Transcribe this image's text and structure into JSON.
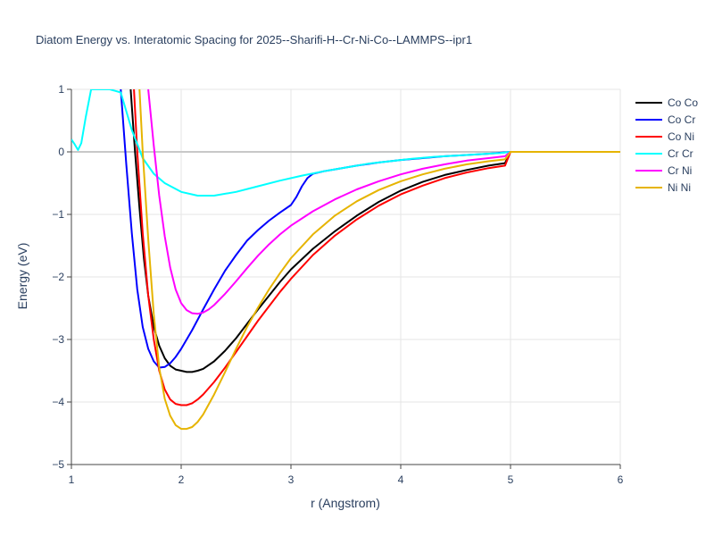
{
  "chart_data": {
    "type": "line",
    "title": "Diatom Energy vs. Interatomic Spacing for 2025--Sharifi-H--Cr-Ni-Co--LAMMPS--ipr1",
    "xlabel": "r (Angstrom)",
    "ylabel": "Energy (eV)",
    "xlim": [
      1,
      6
    ],
    "ylim": [
      -5,
      1
    ],
    "xticks": [
      1,
      2,
      3,
      4,
      5,
      6
    ],
    "xtick_labels": [
      "1",
      "2",
      "3",
      "4",
      "5",
      "6"
    ],
    "yticks": [
      1,
      0,
      -1,
      -2,
      -3,
      -4,
      -5
    ],
    "ytick_labels": [
      "1",
      "0",
      "−1",
      "−2",
      "−3",
      "−4",
      "−5"
    ],
    "grid": true,
    "legend_position": "top-right outside",
    "series": [
      {
        "name": "Co Co",
        "color": "#000000",
        "x": [
          1.54,
          1.58,
          1.62,
          1.66,
          1.7,
          1.75,
          1.8,
          1.85,
          1.9,
          1.95,
          2.0,
          2.05,
          2.1,
          2.15,
          2.2,
          2.3,
          2.4,
          2.5,
          2.6,
          2.7,
          2.8,
          2.9,
          3.0,
          3.2,
          3.4,
          3.6,
          3.8,
          4.0,
          4.2,
          4.4,
          4.6,
          4.8,
          4.95,
          5.0,
          5.5,
          6.0
        ],
        "y": [
          1.0,
          0.0,
          -0.9,
          -1.7,
          -2.3,
          -2.8,
          -3.1,
          -3.3,
          -3.42,
          -3.48,
          -3.5,
          -3.52,
          -3.52,
          -3.5,
          -3.47,
          -3.35,
          -3.18,
          -2.98,
          -2.75,
          -2.52,
          -2.3,
          -2.08,
          -1.88,
          -1.55,
          -1.27,
          -1.02,
          -0.8,
          -0.62,
          -0.48,
          -0.37,
          -0.29,
          -0.22,
          -0.18,
          0.0,
          0.0,
          0.0
        ]
      },
      {
        "name": "Co Cr",
        "color": "#0000ff",
        "x": [
          1.45,
          1.5,
          1.55,
          1.6,
          1.65,
          1.7,
          1.75,
          1.8,
          1.85,
          1.9,
          1.95,
          2.0,
          2.1,
          2.2,
          2.3,
          2.4,
          2.5,
          2.6,
          2.7,
          2.8,
          2.9,
          3.0,
          3.05,
          3.1,
          3.15,
          3.2,
          3.3,
          3.4,
          3.6,
          3.8,
          4.0,
          4.2,
          4.4,
          4.6,
          4.8,
          5.0,
          5.5,
          6.0
        ],
        "y": [
          1.0,
          -0.2,
          -1.3,
          -2.2,
          -2.8,
          -3.15,
          -3.35,
          -3.45,
          -3.44,
          -3.38,
          -3.28,
          -3.15,
          -2.85,
          -2.52,
          -2.2,
          -1.9,
          -1.65,
          -1.42,
          -1.25,
          -1.1,
          -0.97,
          -0.85,
          -0.72,
          -0.55,
          -0.42,
          -0.35,
          -0.31,
          -0.28,
          -0.22,
          -0.17,
          -0.13,
          -0.1,
          -0.07,
          -0.05,
          -0.03,
          0.0,
          0.0,
          0.0
        ]
      },
      {
        "name": "Co Ni",
        "color": "#ff0000",
        "x": [
          1.57,
          1.6,
          1.65,
          1.7,
          1.75,
          1.8,
          1.85,
          1.9,
          1.95,
          2.0,
          2.05,
          2.1,
          2.15,
          2.2,
          2.3,
          2.4,
          2.5,
          2.6,
          2.7,
          2.8,
          2.9,
          3.0,
          3.2,
          3.4,
          3.6,
          3.8,
          4.0,
          4.2,
          4.4,
          4.6,
          4.8,
          4.95,
          5.0,
          5.5,
          6.0
        ],
        "y": [
          1.0,
          0.0,
          -1.3,
          -2.3,
          -3.0,
          -3.5,
          -3.8,
          -3.96,
          -4.03,
          -4.05,
          -4.05,
          -4.02,
          -3.96,
          -3.88,
          -3.68,
          -3.45,
          -3.2,
          -2.95,
          -2.7,
          -2.47,
          -2.24,
          -2.03,
          -1.65,
          -1.34,
          -1.08,
          -0.86,
          -0.68,
          -0.54,
          -0.42,
          -0.33,
          -0.26,
          -0.22,
          0.0,
          0.0,
          0.0
        ]
      },
      {
        "name": "Cr Cr",
        "color": "#00ffff",
        "x": [
          1.0,
          1.03,
          1.06,
          1.09,
          1.13,
          1.18,
          1.25,
          1.35,
          1.45,
          1.55,
          1.65,
          1.75,
          1.85,
          2.0,
          2.15,
          2.3,
          2.5,
          2.7,
          2.9,
          3.1,
          3.3,
          3.5,
          3.7,
          3.9,
          4.1,
          4.3,
          4.5,
          4.7,
          4.9,
          5.0,
          5.5,
          6.0
        ],
        "y": [
          0.2,
          0.12,
          0.03,
          0.14,
          0.55,
          1.0,
          1.0,
          1.0,
          0.95,
          0.35,
          -0.1,
          -0.35,
          -0.5,
          -0.64,
          -0.7,
          -0.7,
          -0.64,
          -0.55,
          -0.46,
          -0.38,
          -0.31,
          -0.25,
          -0.19,
          -0.15,
          -0.11,
          -0.08,
          -0.06,
          -0.04,
          -0.02,
          0.0,
          0.0,
          0.0
        ]
      },
      {
        "name": "Cr Ni",
        "color": "#ff00ff",
        "x": [
          1.7,
          1.75,
          1.8,
          1.85,
          1.9,
          1.95,
          2.0,
          2.05,
          2.1,
          2.15,
          2.2,
          2.25,
          2.3,
          2.4,
          2.5,
          2.6,
          2.7,
          2.8,
          2.9,
          3.0,
          3.2,
          3.4,
          3.6,
          3.8,
          4.0,
          4.2,
          4.4,
          4.6,
          4.8,
          4.95,
          5.0,
          5.5,
          6.0
        ],
        "y": [
          1.0,
          0.1,
          -0.7,
          -1.35,
          -1.85,
          -2.2,
          -2.42,
          -2.53,
          -2.58,
          -2.59,
          -2.57,
          -2.52,
          -2.45,
          -2.27,
          -2.07,
          -1.86,
          -1.66,
          -1.48,
          -1.32,
          -1.18,
          -0.95,
          -0.76,
          -0.6,
          -0.47,
          -0.36,
          -0.27,
          -0.2,
          -0.14,
          -0.1,
          -0.07,
          0.0,
          0.0,
          0.0
        ]
      },
      {
        "name": "Ni Ni",
        "color": "#e6b400",
        "x": [
          1.62,
          1.65,
          1.7,
          1.75,
          1.8,
          1.85,
          1.9,
          1.95,
          2.0,
          2.05,
          2.1,
          2.15,
          2.2,
          2.3,
          2.4,
          2.5,
          2.6,
          2.7,
          2.8,
          2.9,
          3.0,
          3.2,
          3.4,
          3.6,
          3.8,
          4.0,
          4.2,
          4.4,
          4.6,
          4.8,
          4.95,
          5.0,
          5.5,
          6.0
        ],
        "y": [
          1.0,
          0.0,
          -1.4,
          -2.6,
          -3.45,
          -3.95,
          -4.22,
          -4.37,
          -4.43,
          -4.43,
          -4.4,
          -4.32,
          -4.2,
          -3.88,
          -3.52,
          -3.15,
          -2.8,
          -2.49,
          -2.2,
          -1.94,
          -1.7,
          -1.32,
          -1.02,
          -0.79,
          -0.61,
          -0.47,
          -0.36,
          -0.27,
          -0.2,
          -0.15,
          -0.12,
          0.0,
          0.0,
          0.0
        ]
      }
    ]
  }
}
